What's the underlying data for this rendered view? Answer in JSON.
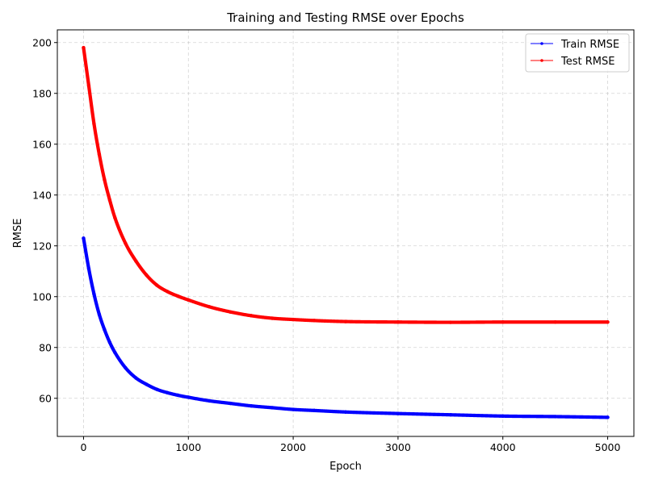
{
  "chart_data": {
    "type": "line",
    "title": "Training and Testing RMSE over Epochs",
    "xlabel": "Epoch",
    "ylabel": "RMSE",
    "xlim": [
      -250,
      5250
    ],
    "ylim": [
      45,
      205
    ],
    "xticks": [
      0,
      1000,
      2000,
      3000,
      4000,
      5000
    ],
    "yticks": [
      60,
      80,
      100,
      120,
      140,
      160,
      180,
      200
    ],
    "grid": true,
    "legend_position": "top-right",
    "x": [
      0,
      50,
      100,
      150,
      200,
      250,
      300,
      400,
      500,
      600,
      700,
      800,
      900,
      1000,
      1200,
      1400,
      1600,
      1800,
      2000,
      2200,
      2500,
      3000,
      3500,
      4000,
      4500,
      5000
    ],
    "series": [
      {
        "name": "Train RMSE",
        "color": "#0000ff",
        "values": [
          123,
          111,
          101,
          93,
          87,
          82,
          78,
          72,
          68,
          65.5,
          63.5,
          62.2,
          61.2,
          60.4,
          59,
          58,
          57,
          56.3,
          55.6,
          55.2,
          54.6,
          54,
          53.5,
          53,
          52.8,
          52.5
        ]
      },
      {
        "name": "Test RMSE",
        "color": "#ff0000",
        "values": [
          198,
          183,
          168,
          156,
          146,
          138,
          131,
          121,
          114,
          108.5,
          104.5,
          102,
          100.2,
          98.7,
          96,
          94,
          92.5,
          91.5,
          91,
          90.6,
          90.2,
          90,
          89.9,
          90,
          90,
          90
        ]
      }
    ]
  }
}
